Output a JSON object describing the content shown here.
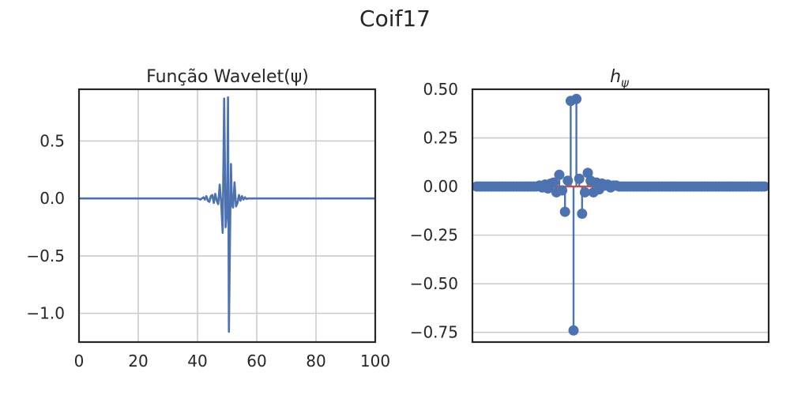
{
  "figure": {
    "title": "Coif17"
  },
  "colors": {
    "series": "#4c72b0",
    "baseline": "#c44e52",
    "grid": "#cccccc",
    "axes": "#262626"
  },
  "chart_data": [
    {
      "type": "line",
      "title": "Função Wavelet(ψ)",
      "xlim": [
        0,
        100
      ],
      "ylim": [
        -1.25,
        0.95
      ],
      "x_ticks": [
        0,
        20,
        40,
        60,
        80,
        100
      ],
      "x_tick_labels": [
        "0",
        "20",
        "40",
        "60",
        "80",
        "100"
      ],
      "y_ticks": [
        0.5,
        0.0,
        -0.5,
        -1.0
      ],
      "y_tick_labels": [
        "0.5",
        "0.0",
        "−0.5",
        "−1.0"
      ],
      "grid": true,
      "series": [
        {
          "x": [
            0,
            40,
            41,
            42,
            42.5,
            43,
            43.5,
            44,
            44.5,
            45,
            45.5,
            46,
            46.5,
            47,
            47.5,
            48,
            48.5,
            49,
            49.5,
            50,
            50.3,
            50.6,
            51,
            51.3,
            51.6,
            52,
            52.5,
            53,
            53.5,
            54,
            54.5,
            55,
            55.5,
            56,
            56.5,
            57,
            58,
            60,
            100
          ],
          "y": [
            0,
            0,
            -0.01,
            0.01,
            -0.01,
            0.02,
            -0.02,
            -0.03,
            0.02,
            0.03,
            -0.04,
            0.04,
            -0.02,
            -0.05,
            0.12,
            -0.04,
            -0.3,
            0.87,
            -0.25,
            -0.1,
            0.88,
            -1.16,
            -0.28,
            0.3,
            -0.05,
            -0.08,
            0.14,
            -0.07,
            -0.04,
            0.03,
            -0.02,
            0.02,
            -0.01,
            0.01,
            -0.005,
            0,
            0,
            0,
            0
          ]
        }
      ]
    },
    {
      "type": "stem",
      "title_base": "h",
      "title_sub": "ψ",
      "ylim": [
        -0.8,
        0.5
      ],
      "xlim": [
        -1.5,
        102.5
      ],
      "y_ticks": [
        0.5,
        0.25,
        0.0,
        -0.25,
        -0.5,
        -0.75
      ],
      "y_tick_labels": [
        "0.50",
        "0.25",
        "0.00",
        "−0.25",
        "−0.50",
        "−0.75"
      ],
      "grid": true,
      "baseline": 0,
      "values": [
        0,
        0,
        0,
        0,
        0,
        0,
        0,
        0,
        0,
        0,
        0,
        0,
        0,
        0,
        0,
        0,
        0,
        0,
        0,
        0,
        0,
        0,
        0.005,
        -0.005,
        0.01,
        -0.01,
        0.015,
        0.02,
        -0.03,
        0.06,
        -0.02,
        -0.13,
        0.03,
        0.44,
        -0.74,
        0.45,
        0.04,
        -0.14,
        -0.03,
        0.07,
        0.03,
        -0.03,
        0.02,
        -0.015,
        0.015,
        0.005,
        0.01,
        -0.005,
        0.005,
        0.005,
        0,
        0,
        0,
        0,
        0,
        0,
        0,
        0,
        0,
        0,
        0,
        0,
        0,
        0,
        0,
        0,
        0,
        0,
        0,
        0,
        0,
        0,
        0,
        0,
        0,
        0,
        0,
        0,
        0,
        0,
        0,
        0,
        0,
        0,
        0,
        0,
        0,
        0,
        0,
        0,
        0,
        0,
        0,
        0,
        0,
        0,
        0,
        0,
        0,
        0,
        0,
        0
      ]
    }
  ]
}
